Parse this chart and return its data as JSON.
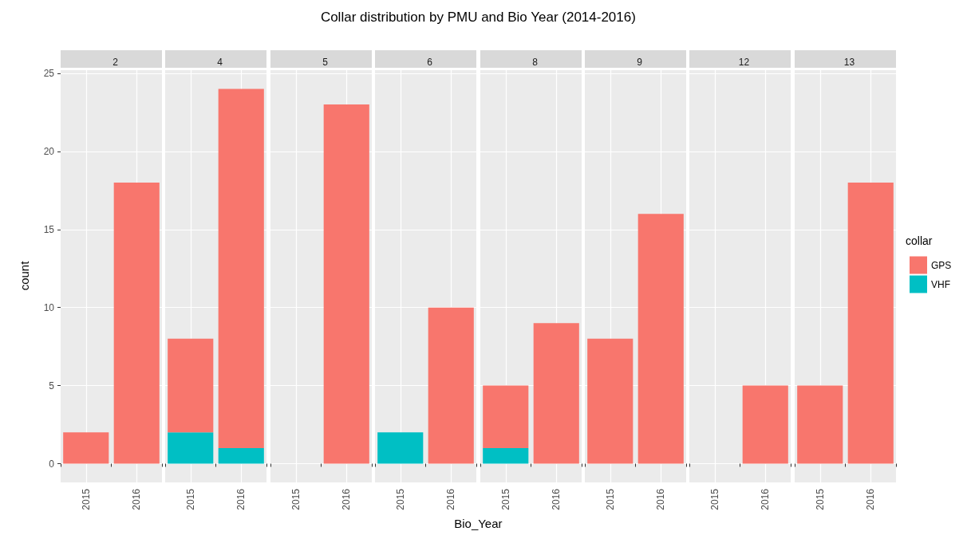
{
  "chart_data": [
    {
      "type": "bar",
      "subtitle": "2",
      "ylabel": "count",
      "categories": [
        "2015",
        "2016"
      ],
      "stacked": true,
      "ylim": [
        -1.2,
        25.2
      ],
      "yticks": [
        0,
        5,
        10,
        15,
        20,
        25
      ],
      "grid": true,
      "series": [
        {
          "color": "#00bfc4",
          "values": [
            null,
            null
          ]
        },
        {
          "color": "#f8766d",
          "values": [
            2,
            18
          ]
        }
      ]
    },
    {
      "type": "bar",
      "subtitle": "4",
      "categories": [
        "2015",
        "2016"
      ],
      "stacked": true,
      "ylim": [
        -1.2,
        25.2
      ],
      "yticks": [
        0,
        5,
        10,
        15,
        20,
        25
      ],
      "grid": true,
      "tick_labels": "x",
      "series": [
        {
          "color": "#00bfc4",
          "values": [
            2,
            1
          ]
        },
        {
          "color": "#f8766d",
          "values": [
            6,
            23
          ]
        }
      ]
    },
    {
      "type": "bar",
      "subtitle": "5",
      "categories": [
        "2015",
        "2016"
      ],
      "stacked": true,
      "ylim": [
        -1.2,
        25.2
      ],
      "yticks": [
        0,
        5,
        10,
        15,
        20,
        25
      ],
      "grid": true,
      "tick_labels": "x",
      "series": [
        {
          "color": "#00bfc4",
          "values": [
            null,
            null
          ]
        },
        {
          "color": "#f8766d",
          "values": [
            null,
            23
          ]
        }
      ]
    },
    {
      "type": "bar",
      "subtitle": "6",
      "categories": [
        "2015",
        "2016"
      ],
      "stacked": true,
      "ylim": [
        -1.2,
        25.2
      ],
      "yticks": [
        0,
        5,
        10,
        15,
        20,
        25
      ],
      "grid": true,
      "tick_labels": "x",
      "series": [
        {
          "color": "#00bfc4",
          "values": [
            2,
            null
          ]
        },
        {
          "color": "#f8766d",
          "values": [
            null,
            10
          ]
        }
      ]
    },
    {
      "type": "bar",
      "title": "Collar distribution by PMU and Bio Year (2014-2016)",
      "xlabel": "Bio_Year",
      "subtitle": "8",
      "categories": [
        "2015",
        "2016"
      ],
      "stacked": true,
      "ylim": [
        -1.2,
        25.2
      ],
      "yticks": [
        0,
        5,
        10,
        15,
        20,
        25
      ],
      "grid": true,
      "tick_labels": "x",
      "series": [
        {
          "color": "#00bfc4",
          "values": [
            1,
            null
          ]
        },
        {
          "color": "#f8766d",
          "values": [
            4,
            9
          ]
        }
      ]
    },
    {
      "type": "bar",
      "subtitle": "9",
      "categories": [
        "2015",
        "2016"
      ],
      "stacked": true,
      "ylim": [
        -1.2,
        25.2
      ],
      "yticks": [
        0,
        5,
        10,
        15,
        20,
        25
      ],
      "grid": true,
      "tick_labels": "x",
      "series": [
        {
          "color": "#00bfc4",
          "values": [
            null,
            null
          ]
        },
        {
          "color": "#f8766d",
          "values": [
            8,
            16
          ]
        }
      ]
    },
    {
      "type": "bar",
      "subtitle": "12",
      "categories": [
        "2015",
        "2016"
      ],
      "stacked": true,
      "ylim": [
        -1.2,
        25.2
      ],
      "yticks": [
        0,
        5,
        10,
        15,
        20,
        25
      ],
      "grid": true,
      "tick_labels": "x",
      "series": [
        {
          "color": "#00bfc4",
          "values": [
            null,
            null
          ]
        },
        {
          "color": "#f8766d",
          "values": [
            null,
            5
          ]
        }
      ]
    },
    {
      "type": "bar",
      "subtitle": "13",
      "categories": [
        "2015",
        "2016"
      ],
      "stacked": true,
      "ylim": [
        -1.2,
        25.2
      ],
      "yticks": [
        0,
        5,
        10,
        15,
        20,
        25
      ],
      "grid": true,
      "tick_labels": "x",
      "legend": "right",
      "legend_title": "collar",
      "series": [
        {
          "name": "VHF",
          "color": "#00bfc4",
          "values": [
            null,
            null
          ]
        },
        {
          "name": "GPS",
          "color": "#f8766d",
          "values": [
            5,
            18
          ]
        }
      ]
    }
  ]
}
